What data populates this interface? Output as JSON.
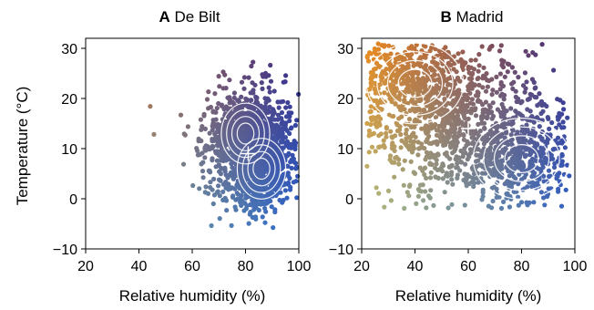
{
  "chart_data": [
    {
      "type": "scatter",
      "panel_letter": "A",
      "title": "De Bilt",
      "xlabel": "Relative humidity (%)",
      "ylabel": "Temperature (°C)",
      "xlim": [
        20,
        100
      ],
      "ylim": [
        -10,
        32
      ],
      "xticks": [
        20,
        40,
        60,
        80,
        100
      ],
      "yticks": [
        -10,
        0,
        10,
        20,
        30
      ],
      "grid": false,
      "color_encoding": "hue varies with temperature and humidity: orange (warm, dry), blue (cool, humid), purple (warm, humid)",
      "colors": {
        "warm_dry": "#e8852a",
        "cool_humid": "#2b6fd6",
        "warm_humid": "#3a2480",
        "cool_dry": "#93b88a"
      },
      "cloud": {
        "center": [
          82,
          10
        ],
        "x_spread": 9,
        "y_spread": 6,
        "x_range": [
          38,
          100
        ],
        "y_range": [
          -7,
          28
        ]
      },
      "density_peaks": [
        [
          80,
          13
        ],
        [
          86,
          6
        ]
      ],
      "median_marker": [
        81,
        9
      ],
      "contour_levels": 4
    },
    {
      "type": "scatter",
      "panel_letter": "B",
      "title": "Madrid",
      "xlabel": "Relative humidity (%)",
      "ylabel": "",
      "xlim": [
        20,
        100
      ],
      "ylim": [
        -10,
        32
      ],
      "xticks": [
        20,
        40,
        60,
        80,
        100
      ],
      "yticks": [
        -10,
        0,
        10,
        20,
        30
      ],
      "grid": false,
      "color_encoding": "hue varies with temperature and humidity: orange (warm, dry), blue (cool, humid), purple (warm, humid)",
      "colors": {
        "warm_dry": "#f08a1a",
        "cool_humid": "#2b6fd6",
        "warm_humid": "#3a2480",
        "cool_dry": "#a8c890"
      },
      "cloud": {
        "center": [
          55,
          15
        ],
        "x_spread": 18,
        "y_spread": 8,
        "x_range": [
          22,
          98
        ],
        "y_range": [
          -2,
          31
        ]
      },
      "density_peaks": [
        [
          40,
          23
        ],
        [
          80,
          8
        ]
      ],
      "median_marker": [
        60,
        14
      ],
      "contour_levels": 4
    }
  ]
}
